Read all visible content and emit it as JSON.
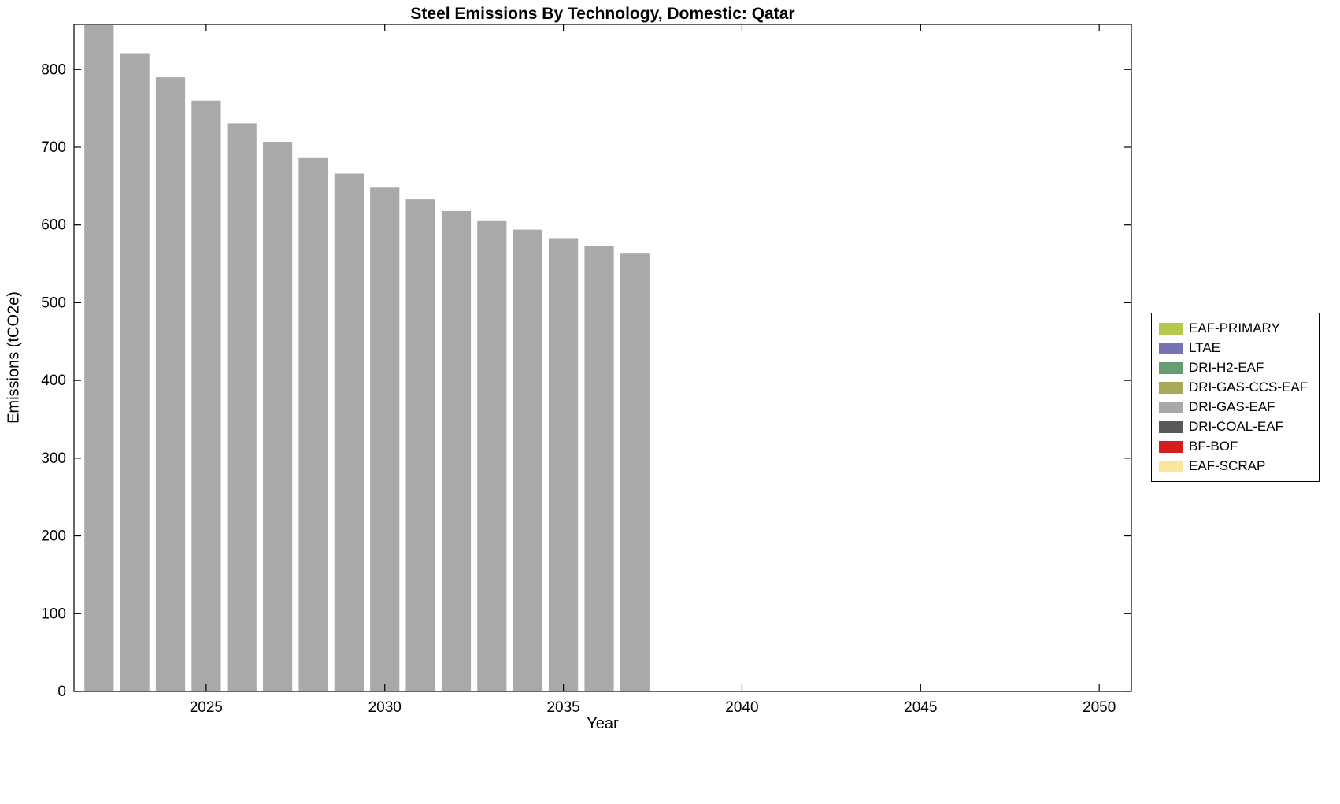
{
  "figure": {
    "title": "Steel Emissions By Technology, Domestic: Qatar",
    "xlabel": "Year",
    "ylabel": "Emissions (tCO2e)"
  },
  "chart_data": {
    "type": "bar",
    "title": "Steel Emissions By Technology, Domestic: Qatar",
    "xlabel": "Year",
    "ylabel": "Emissions (tCO2e)",
    "categories": [
      2022,
      2023,
      2024,
      2025,
      2026,
      2027,
      2028,
      2029,
      2030,
      2031,
      2032,
      2033,
      2034,
      2035,
      2036,
      2037
    ],
    "series": [
      {
        "name": "DRI-GAS-EAF",
        "color": "#a9a9a9",
        "values": [
          857,
          821,
          790,
          760,
          731,
          707,
          686,
          666,
          648,
          633,
          618,
          605,
          594,
          583,
          573,
          564
        ]
      }
    ],
    "xlim": [
      2021.3,
      2050.9
    ],
    "ylim": [
      0,
      858
    ],
    "xticks": [
      2025,
      2030,
      2035,
      2040,
      2045,
      2050
    ],
    "yticks": [
      0,
      100,
      200,
      300,
      400,
      500,
      600,
      700,
      800
    ],
    "grid": false,
    "legend_position": "right-outside",
    "legend": [
      {
        "label": "EAF-PRIMARY",
        "color": "#b4c84c"
      },
      {
        "label": "LTAE",
        "color": "#7672b4"
      },
      {
        "label": "DRI-H2-EAF",
        "color": "#679d73"
      },
      {
        "label": "DRI-GAS-CCS-EAF",
        "color": "#a8a958"
      },
      {
        "label": "DRI-GAS-EAF",
        "color": "#a8a8a8"
      },
      {
        "label": "DRI-COAL-EAF",
        "color": "#595959"
      },
      {
        "label": "BF-BOF",
        "color": "#d41e1e"
      },
      {
        "label": "EAF-SCRAP",
        "color": "#fae79c"
      }
    ]
  }
}
